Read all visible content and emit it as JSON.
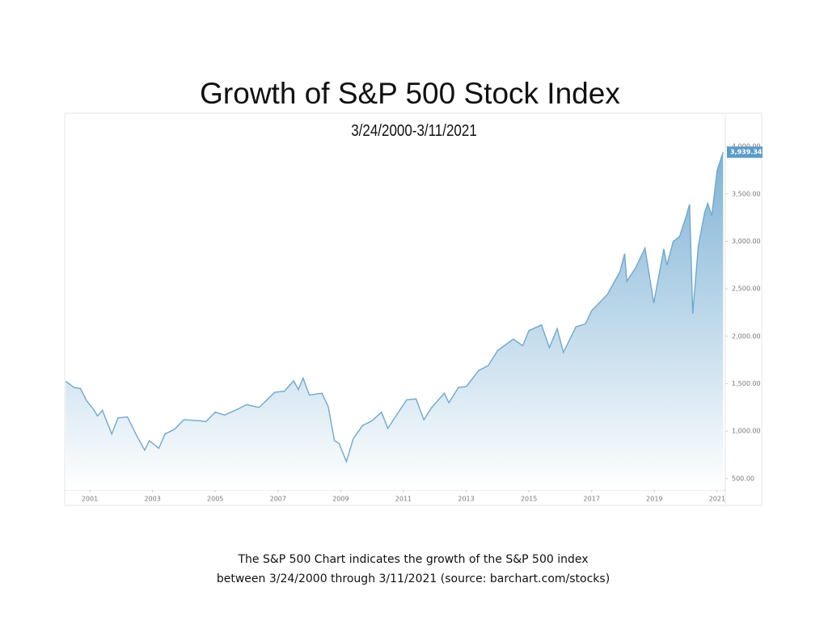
{
  "chart_data": {
    "type": "area",
    "title": "Growth of S&P 500 Stock Index",
    "subtitle": "3/24/2000-3/11/2021",
    "caption": [
      "The S&P 500 Chart indicates the growth of the S&P 500 index",
      "between 3/24/2000 through 3/11/2021 (source: barchart.com/stocks)"
    ],
    "color": "#6fa8cf",
    "grid": false,
    "xlim": [
      2000.2,
      2021.26
    ],
    "xticks": [
      2001,
      2003,
      2005,
      2007,
      2009,
      2011,
      2013,
      2015,
      2017,
      2019,
      2021
    ],
    "ylim": [
      380,
      4350
    ],
    "yticks": [
      {
        "value": 500,
        "label": "500.00"
      },
      {
        "value": 1000,
        "label": "1,000.00"
      },
      {
        "value": 1500,
        "label": "1,500.00"
      },
      {
        "value": 2000,
        "label": "2,000.00"
      },
      {
        "value": 2500,
        "label": "2,500.00"
      },
      {
        "value": 3000,
        "label": "3,000.00"
      },
      {
        "value": 3500,
        "label": "3,500.00"
      },
      {
        "value": 4000,
        "label": "4,000.00"
      }
    ],
    "x": [
      2000.23,
      2000.5,
      2000.7,
      2000.9,
      2001.1,
      2001.25,
      2001.4,
      2001.7,
      2001.9,
      2002.2,
      2002.5,
      2002.75,
      2002.9,
      2003.2,
      2003.4,
      2003.7,
      2004.0,
      2004.5,
      2004.7,
      2005.0,
      2005.3,
      2005.7,
      2006.0,
      2006.4,
      2006.9,
      2007.2,
      2007.5,
      2007.65,
      2007.8,
      2008.0,
      2008.4,
      2008.6,
      2008.8,
      2008.95,
      2009.18,
      2009.4,
      2009.7,
      2010.0,
      2010.3,
      2010.5,
      2010.8,
      2011.1,
      2011.4,
      2011.65,
      2011.9,
      2012.3,
      2012.45,
      2012.75,
      2013.0,
      2013.4,
      2013.7,
      2014.0,
      2014.5,
      2014.8,
      2015.0,
      2015.4,
      2015.65,
      2015.9,
      2016.1,
      2016.5,
      2016.8,
      2017.0,
      2017.5,
      2017.9,
      2018.05,
      2018.12,
      2018.4,
      2018.7,
      2018.98,
      2019.3,
      2019.4,
      2019.6,
      2019.8,
      2020.0,
      2020.12,
      2020.22,
      2020.4,
      2020.6,
      2020.7,
      2020.83,
      2021.0,
      2021.1,
      2021.19
    ],
    "values": [
      1527,
      1460,
      1450,
      1320,
      1240,
      1160,
      1220,
      970,
      1140,
      1150,
      950,
      800,
      900,
      820,
      970,
      1020,
      1120,
      1110,
      1100,
      1200,
      1170,
      1230,
      1280,
      1250,
      1410,
      1420,
      1530,
      1440,
      1560,
      1380,
      1400,
      1260,
      900,
      870,
      680,
      920,
      1060,
      1110,
      1200,
      1030,
      1180,
      1330,
      1340,
      1120,
      1250,
      1400,
      1300,
      1460,
      1470,
      1640,
      1690,
      1850,
      1970,
      1900,
      2060,
      2120,
      1880,
      2080,
      1830,
      2100,
      2130,
      2270,
      2440,
      2680,
      2870,
      2580,
      2720,
      2930,
      2350,
      2920,
      2750,
      3000,
      3050,
      3250,
      3390,
      2237,
      2950,
      3300,
      3400,
      3270,
      3750,
      3850,
      3939.34
    ],
    "last_value_label": "3,939.34"
  }
}
